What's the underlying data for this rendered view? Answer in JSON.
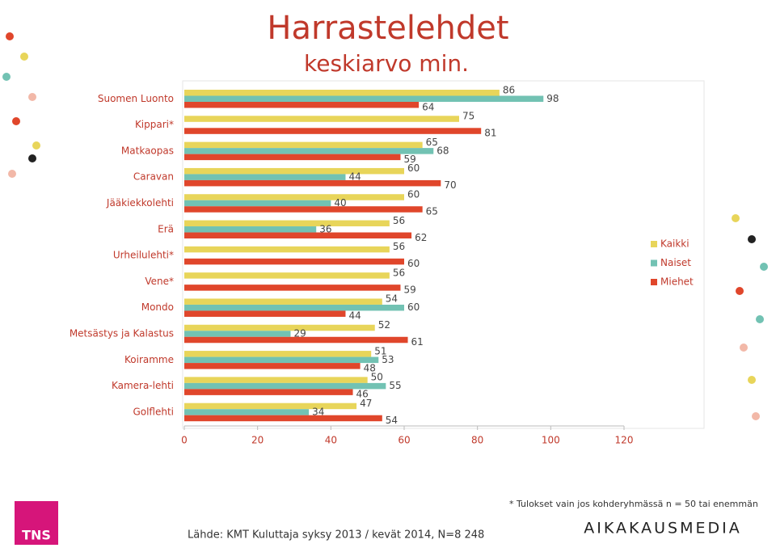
{
  "chart_data": {
    "type": "bar",
    "orientation": "horizontal",
    "title": "Harrastelehdet",
    "subtitle": "keskiarvo min.",
    "categories": [
      "Suomen Luonto",
      "Kippari*",
      "Matkaopas",
      "Caravan",
      "Jääkiekkolehti",
      "Erä",
      "Urheilulehti*",
      "Vene*",
      "Mondo",
      "Metsästys ja Kalastus",
      "Koiramme",
      "Kamera-lehti",
      "Golflehti"
    ],
    "series": [
      {
        "name": "Kaikki",
        "color": "#e8d55a",
        "values": [
          86,
          75,
          65,
          60,
          60,
          56,
          56,
          56,
          54,
          52,
          51,
          50,
          47
        ]
      },
      {
        "name": "Naiset",
        "color": "#72c2b3",
        "values": [
          98,
          null,
          68,
          44,
          40,
          36,
          null,
          null,
          60,
          29,
          53,
          55,
          34
        ]
      },
      {
        "name": "Miehet",
        "color": "#e0462b",
        "values": [
          64,
          81,
          59,
          70,
          65,
          62,
          60,
          59,
          44,
          61,
          48,
          46,
          54
        ]
      }
    ],
    "xlim": [
      0,
      120
    ],
    "xticks": [
      0,
      20,
      40,
      60,
      80,
      100,
      120
    ],
    "grid": false,
    "legend": "right"
  },
  "footnote": "* Tulokset vain jos kohderyhmässä n = 50 tai enemmän",
  "source": "Lähde: KMT Kuluttaja syksy 2013 / kevät 2014, N=8 248",
  "logos": [
    "TNS",
    "AIKAKAUSMEDIA"
  ]
}
